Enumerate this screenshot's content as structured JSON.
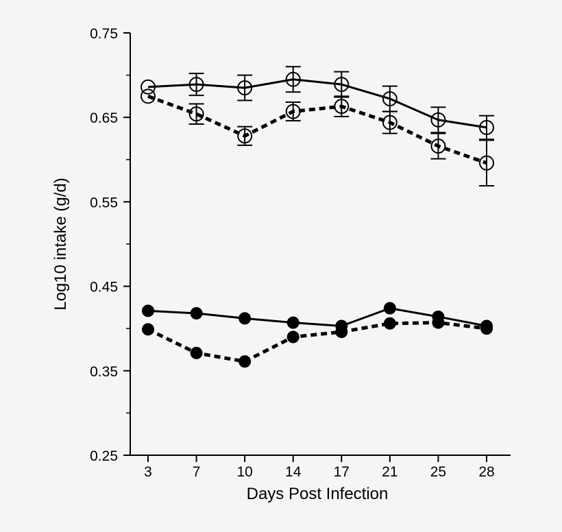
{
  "chart_data": {
    "type": "line",
    "xlabel": "Days Post Infection",
    "ylabel": "Log10 intake (g/d)",
    "categories": [
      "3",
      "7",
      "10",
      "14",
      "17",
      "21",
      "25",
      "28"
    ],
    "ylim": [
      0.25,
      0.75
    ],
    "yticks": [
      "0.25",
      "0.35",
      "0.45",
      "0.55",
      "0.65",
      "0.75"
    ],
    "grid": false,
    "series": [
      {
        "marker": "open-circle",
        "line": "solid",
        "values": [
          0.686,
          0.689,
          0.685,
          0.695,
          0.689,
          0.672,
          0.647,
          0.638
        ],
        "errors": [
          0,
          0.013,
          0.015,
          0.015,
          0.015,
          0.015,
          0.015,
          0.014
        ]
      },
      {
        "marker": "open-circle",
        "line": "dashed",
        "values": [
          0.675,
          0.654,
          0.628,
          0.657,
          0.663,
          0.644,
          0.616,
          0.596
        ],
        "errors": [
          0,
          0.012,
          0.011,
          0.011,
          0.012,
          0.013,
          0.015,
          0.027
        ]
      },
      {
        "marker": "filled-circle",
        "line": "solid",
        "values": [
          0.421,
          0.418,
          0.412,
          0.407,
          0.403,
          0.424,
          0.414,
          0.403
        ]
      },
      {
        "marker": "filled-circle",
        "line": "dashed",
        "values": [
          0.399,
          0.371,
          0.361,
          0.39,
          0.396,
          0.406,
          0.407,
          0.4
        ]
      }
    ]
  }
}
